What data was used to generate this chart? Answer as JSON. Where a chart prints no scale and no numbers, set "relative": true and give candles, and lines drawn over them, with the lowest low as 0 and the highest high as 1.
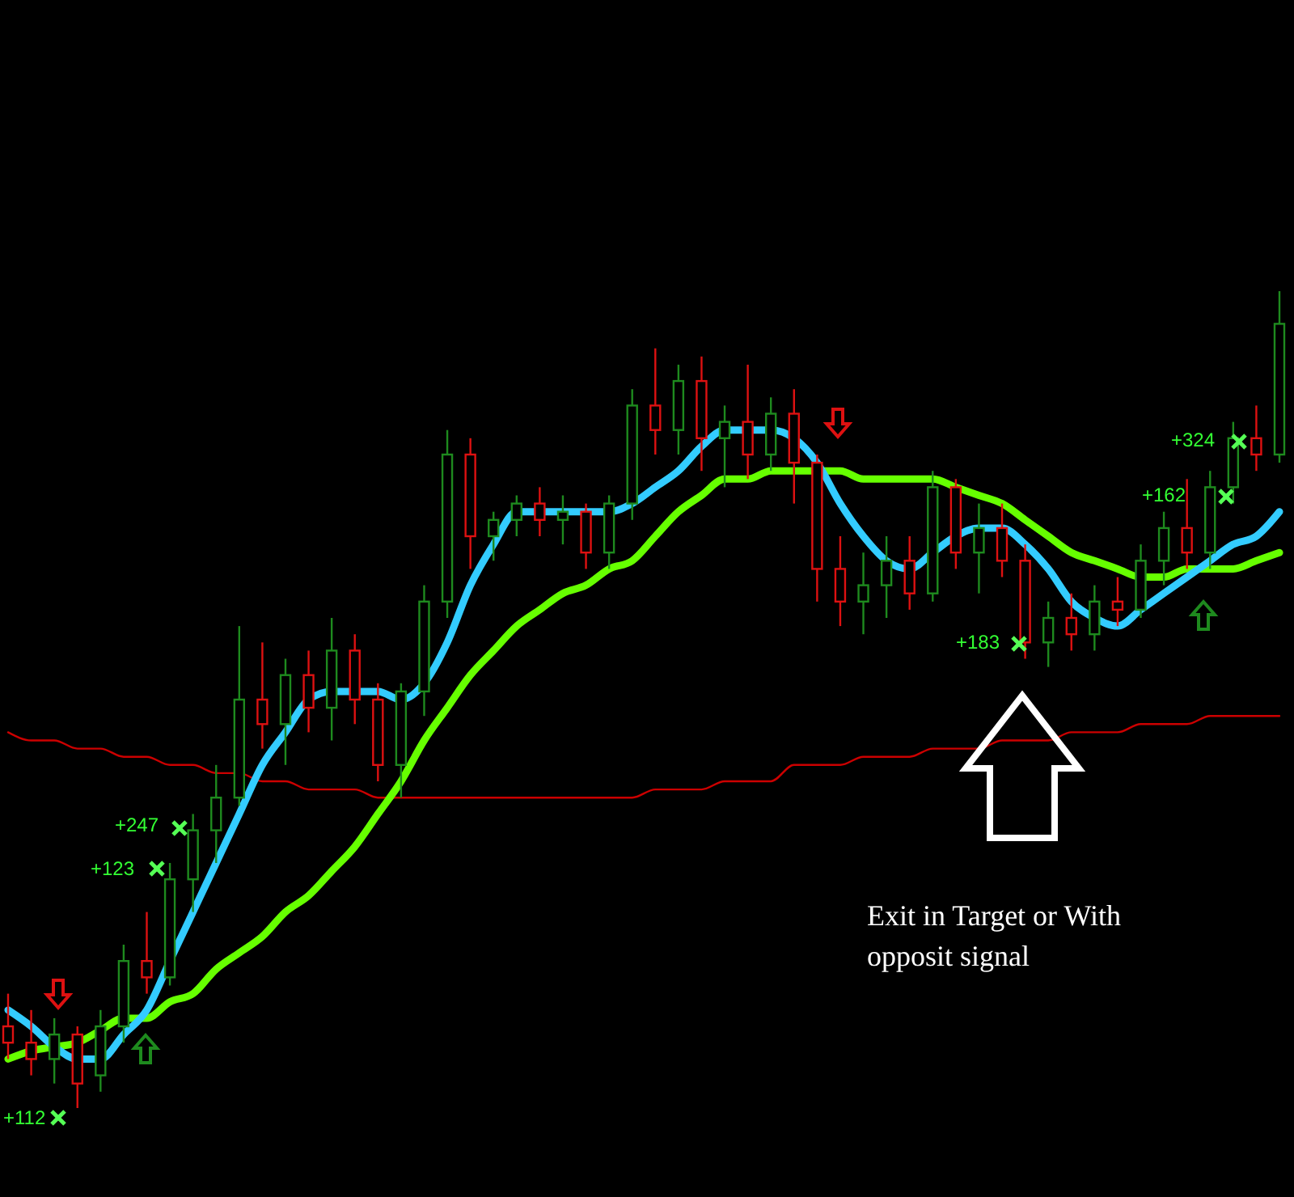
{
  "chart_data": {
    "type": "candlestick",
    "relative": true,
    "categories": [
      null,
      null,
      null,
      null,
      null,
      null,
      null,
      null,
      null,
      null,
      null,
      null,
      null,
      null,
      null,
      null,
      null,
      null,
      null,
      null,
      null,
      null,
      null,
      null,
      null,
      null,
      null,
      null,
      null,
      null,
      null,
      null,
      null,
      null,
      null,
      null,
      null,
      null,
      null,
      null,
      null,
      null,
      null,
      null,
      null,
      null,
      null,
      null,
      null,
      null,
      null,
      null,
      null,
      null,
      null,
      null
    ],
    "ohlc": [
      [
        0.1,
        0.14,
        0.06,
        0.08
      ],
      [
        0.08,
        0.12,
        0.04,
        0.06
      ],
      [
        0.06,
        0.11,
        0.03,
        0.09
      ],
      [
        0.09,
        0.1,
        0.0,
        0.03
      ],
      [
        0.04,
        0.12,
        0.02,
        0.1
      ],
      [
        0.1,
        0.2,
        0.08,
        0.18
      ],
      [
        0.18,
        0.24,
        0.14,
        0.16
      ],
      [
        0.16,
        0.3,
        0.15,
        0.28
      ],
      [
        0.28,
        0.36,
        0.24,
        0.34
      ],
      [
        0.34,
        0.42,
        0.3,
        0.38
      ],
      [
        0.38,
        0.59,
        0.37,
        0.5
      ],
      [
        0.5,
        0.57,
        0.44,
        0.47
      ],
      [
        0.47,
        0.55,
        0.42,
        0.53
      ],
      [
        0.53,
        0.56,
        0.46,
        0.49
      ],
      [
        0.49,
        0.6,
        0.45,
        0.56
      ],
      [
        0.56,
        0.58,
        0.47,
        0.5
      ],
      [
        0.5,
        0.52,
        0.4,
        0.42
      ],
      [
        0.42,
        0.52,
        0.38,
        0.51
      ],
      [
        0.51,
        0.64,
        0.48,
        0.62
      ],
      [
        0.62,
        0.83,
        0.6,
        0.8
      ],
      [
        0.8,
        0.82,
        0.66,
        0.7
      ],
      [
        0.7,
        0.73,
        0.67,
        0.72
      ],
      [
        0.72,
        0.75,
        0.7,
        0.74
      ],
      [
        0.74,
        0.76,
        0.7,
        0.72
      ],
      [
        0.72,
        0.75,
        0.69,
        0.73
      ],
      [
        0.73,
        0.74,
        0.66,
        0.68
      ],
      [
        0.68,
        0.75,
        0.66,
        0.74
      ],
      [
        0.74,
        0.88,
        0.72,
        0.86
      ],
      [
        0.86,
        0.93,
        0.8,
        0.83
      ],
      [
        0.83,
        0.91,
        0.8,
        0.89
      ],
      [
        0.89,
        0.92,
        0.78,
        0.82
      ],
      [
        0.82,
        0.86,
        0.76,
        0.84
      ],
      [
        0.84,
        0.91,
        0.77,
        0.8
      ],
      [
        0.8,
        0.87,
        0.78,
        0.85
      ],
      [
        0.85,
        0.88,
        0.74,
        0.79
      ],
      [
        0.79,
        0.8,
        0.62,
        0.66
      ],
      [
        0.66,
        0.7,
        0.59,
        0.62
      ],
      [
        0.62,
        0.68,
        0.58,
        0.64
      ],
      [
        0.64,
        0.7,
        0.6,
        0.67
      ],
      [
        0.67,
        0.7,
        0.61,
        0.63
      ],
      [
        0.63,
        0.78,
        0.62,
        0.76
      ],
      [
        0.76,
        0.77,
        0.66,
        0.68
      ],
      [
        0.68,
        0.74,
        0.63,
        0.71
      ],
      [
        0.71,
        0.74,
        0.65,
        0.67
      ],
      [
        0.67,
        0.69,
        0.55,
        0.57
      ],
      [
        0.57,
        0.62,
        0.54,
        0.6
      ],
      [
        0.6,
        0.63,
        0.56,
        0.58
      ],
      [
        0.58,
        0.64,
        0.56,
        0.62
      ],
      [
        0.62,
        0.65,
        0.59,
        0.61
      ],
      [
        0.61,
        0.69,
        0.6,
        0.67
      ],
      [
        0.67,
        0.73,
        0.64,
        0.71
      ],
      [
        0.71,
        0.77,
        0.66,
        0.68
      ],
      [
        0.68,
        0.78,
        0.66,
        0.76
      ],
      [
        0.76,
        0.84,
        0.74,
        0.82
      ],
      [
        0.82,
        0.86,
        0.78,
        0.8
      ],
      [
        0.8,
        1.0,
        0.79,
        0.96
      ]
    ],
    "series": [
      {
        "type": "line",
        "color": "#cc0000",
        "values": [
          0.46,
          0.45,
          0.45,
          0.44,
          0.44,
          0.43,
          0.43,
          0.42,
          0.42,
          0.41,
          0.41,
          0.4,
          0.4,
          0.39,
          0.39,
          0.39,
          0.38,
          0.38,
          0.38,
          0.38,
          0.38,
          0.38,
          0.38,
          0.38,
          0.38,
          0.38,
          0.38,
          0.38,
          0.39,
          0.39,
          0.39,
          0.4,
          0.4,
          0.4,
          0.42,
          0.42,
          0.42,
          0.43,
          0.43,
          0.43,
          0.44,
          0.44,
          0.44,
          0.45,
          0.45,
          0.45,
          0.46,
          0.46,
          0.46,
          0.47,
          0.47,
          0.47,
          0.48,
          0.48,
          0.48,
          0.48
        ]
      },
      {
        "type": "line",
        "color": "#66ff00",
        "values": [
          0.06,
          0.07,
          0.075,
          0.08,
          0.095,
          0.11,
          0.11,
          0.13,
          0.14,
          0.17,
          0.19,
          0.21,
          0.24,
          0.26,
          0.29,
          0.32,
          0.36,
          0.4,
          0.45,
          0.49,
          0.53,
          0.56,
          0.59,
          0.61,
          0.63,
          0.64,
          0.66,
          0.67,
          0.7,
          0.73,
          0.75,
          0.77,
          0.77,
          0.78,
          0.78,
          0.78,
          0.78,
          0.77,
          0.77,
          0.77,
          0.77,
          0.76,
          0.75,
          0.74,
          0.72,
          0.7,
          0.68,
          0.67,
          0.66,
          0.65,
          0.65,
          0.66,
          0.66,
          0.66,
          0.67,
          0.68
        ]
      },
      {
        "type": "line",
        "color": "#33ccff",
        "values": [
          0.12,
          0.1,
          0.075,
          0.06,
          0.06,
          0.09,
          0.12,
          0.18,
          0.24,
          0.3,
          0.36,
          0.42,
          0.46,
          0.5,
          0.51,
          0.51,
          0.51,
          0.5,
          0.52,
          0.57,
          0.64,
          0.69,
          0.73,
          0.73,
          0.73,
          0.73,
          0.73,
          0.74,
          0.76,
          0.78,
          0.81,
          0.83,
          0.83,
          0.83,
          0.82,
          0.79,
          0.74,
          0.7,
          0.67,
          0.66,
          0.68,
          0.7,
          0.71,
          0.71,
          0.69,
          0.66,
          0.62,
          0.6,
          0.59,
          0.61,
          0.63,
          0.65,
          0.67,
          0.69,
          0.7,
          0.73
        ]
      }
    ],
    "annotations": [
      "+112",
      "+123",
      "+247",
      "+183",
      "+162",
      "+324",
      "Exit in Target or With opposit signal"
    ]
  }
}
